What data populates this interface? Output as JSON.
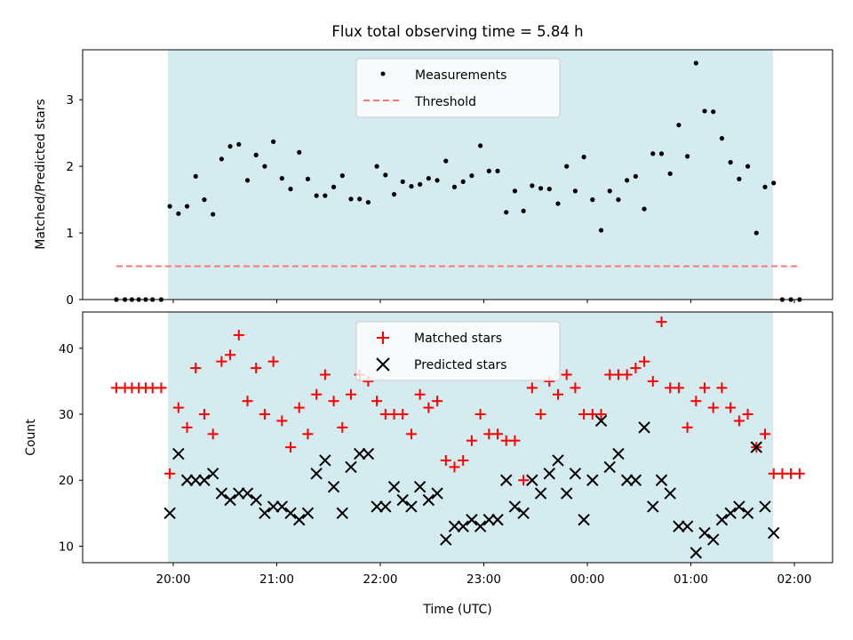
{
  "chart_data": [
    {
      "type": "scatter",
      "title": "Flux total observing time = 5.84 h",
      "ylabel": "Matched/Predicted stars",
      "xlabel": "",
      "x_unit": "hours (UTC, relative to 20:00)",
      "ylim": [
        0,
        3.75
      ],
      "yticks": [
        "0",
        "1",
        "2",
        "3"
      ],
      "ytick_values": [
        0,
        1,
        2,
        3
      ],
      "legend_position": "top-center",
      "shaded_span": {
        "start": "19:58",
        "end": "01:45",
        "color": "#d4ebf0"
      },
      "series": [
        {
          "name": "Measurements",
          "color": "#000000",
          "marker": "dot",
          "x": [
            "19:27",
            "19:32",
            "19:36",
            "19:40",
            "19:44",
            "19:48",
            "19:53",
            "19:58",
            "20:03",
            "20:08",
            "20:13",
            "20:18",
            "20:23",
            "20:28",
            "20:33",
            "20:38",
            "20:43",
            "20:48",
            "20:53",
            "20:58",
            "21:03",
            "21:08",
            "21:13",
            "21:18",
            "21:23",
            "21:28",
            "21:33",
            "21:38",
            "21:43",
            "21:48",
            "21:53",
            "21:58",
            "22:03",
            "22:08",
            "22:13",
            "22:18",
            "22:23",
            "22:28",
            "22:33",
            "22:38",
            "22:43",
            "22:48",
            "22:53",
            "22:58",
            "23:03",
            "23:08",
            "23:13",
            "23:18",
            "23:23",
            "23:28",
            "23:33",
            "23:38",
            "23:43",
            "23:48",
            "23:53",
            "23:58",
            "00:03",
            "00:08",
            "00:13",
            "00:18",
            "00:23",
            "00:28",
            "00:33",
            "00:38",
            "00:43",
            "00:48",
            "00:53",
            "00:58",
            "01:03",
            "01:08",
            "01:13",
            "01:18",
            "01:23",
            "01:28",
            "01:33",
            "01:38",
            "01:43",
            "01:48",
            "01:53",
            "01:58",
            "02:03"
          ],
          "values": [
            0,
            0,
            0,
            0,
            0,
            0,
            0,
            1.4,
            1.29,
            1.4,
            1.85,
            1.5,
            1.28,
            2.11,
            2.3,
            2.33,
            1.79,
            2.17,
            2.0,
            2.37,
            1.82,
            1.66,
            2.21,
            1.81,
            1.56,
            1.56,
            1.69,
            1.86,
            1.51,
            1.51,
            1.46,
            2.0,
            1.87,
            1.58,
            1.77,
            1.7,
            1.73,
            1.82,
            1.79,
            2.08,
            1.69,
            1.77,
            1.86,
            2.31,
            1.93,
            1.93,
            1.31,
            1.63,
            1.33,
            1.71,
            1.67,
            1.66,
            1.44,
            2.0,
            1.63,
            2.14,
            1.5,
            1.04,
            1.63,
            1.5,
            1.79,
            1.85,
            1.36,
            2.19,
            2.19,
            1.89,
            2.62,
            2.15,
            3.55,
            2.83,
            2.82,
            2.42,
            2.06,
            1.81,
            2.0,
            1.0,
            1.69,
            1.75,
            0,
            0,
            0
          ]
        },
        {
          "name": "Threshold",
          "color": "#ff7575",
          "style": "dashed",
          "x": [
            "19:27",
            "02:03"
          ],
          "values": [
            0.5,
            0.5
          ]
        }
      ]
    },
    {
      "type": "scatter",
      "title": "",
      "ylabel": "Count",
      "xlabel": "Time (UTC)",
      "ylim": [
        7.5,
        45.5
      ],
      "yticks": [
        "10",
        "20",
        "30",
        "40"
      ],
      "ytick_values": [
        10,
        20,
        30,
        40
      ],
      "xticks": [
        "20:00",
        "21:00",
        "22:00",
        "23:00",
        "00:00",
        "01:00",
        "02:00"
      ],
      "legend_position": "top-center",
      "shaded_span": {
        "start": "19:58",
        "end": "01:45",
        "color": "#d4ebf0"
      },
      "series": [
        {
          "name": "Matched stars",
          "color": "#ff0000",
          "marker": "plus",
          "x": [
            "19:27",
            "19:32",
            "19:36",
            "19:40",
            "19:44",
            "19:48",
            "19:53",
            "19:58",
            "20:03",
            "20:08",
            "20:13",
            "20:18",
            "20:23",
            "20:28",
            "20:33",
            "20:38",
            "20:43",
            "20:48",
            "20:53",
            "20:58",
            "21:03",
            "21:08",
            "21:13",
            "21:18",
            "21:23",
            "21:28",
            "21:33",
            "21:38",
            "21:43",
            "21:48",
            "21:53",
            "21:58",
            "22:03",
            "22:08",
            "22:13",
            "22:18",
            "22:23",
            "22:28",
            "22:33",
            "22:38",
            "22:43",
            "22:48",
            "22:53",
            "22:58",
            "23:03",
            "23:08",
            "23:13",
            "23:18",
            "23:23",
            "23:28",
            "23:33",
            "23:38",
            "23:43",
            "23:48",
            "23:53",
            "23:58",
            "00:03",
            "00:08",
            "00:13",
            "00:18",
            "00:23",
            "00:28",
            "00:33",
            "00:38",
            "00:43",
            "00:48",
            "00:53",
            "00:58",
            "01:03",
            "01:08",
            "01:13",
            "01:18",
            "01:23",
            "01:28",
            "01:33",
            "01:38",
            "01:43",
            "01:48",
            "01:53",
            "01:58",
            "02:03"
          ],
          "values": [
            34,
            34,
            34,
            34,
            34,
            34,
            34,
            21,
            31,
            28,
            37,
            30,
            27,
            38,
            39,
            42,
            32,
            37,
            30,
            38,
            29,
            25,
            31,
            27,
            33,
            36,
            32,
            28,
            33,
            36,
            35,
            32,
            30,
            30,
            30,
            27,
            33,
            31,
            32,
            23,
            22,
            23,
            26,
            30,
            27,
            27,
            26,
            26,
            20,
            34,
            30,
            35,
            33,
            36,
            34,
            30,
            30,
            30,
            36,
            36,
            36,
            37,
            38,
            35,
            44,
            34,
            34,
            28,
            32,
            34,
            31,
            34,
            31,
            29,
            30,
            25,
            27,
            21,
            21,
            21,
            21
          ]
        },
        {
          "name": "Predicted stars",
          "color": "#000000",
          "marker": "x",
          "x": [
            "19:58",
            "20:03",
            "20:08",
            "20:13",
            "20:18",
            "20:23",
            "20:28",
            "20:33",
            "20:38",
            "20:43",
            "20:48",
            "20:53",
            "20:58",
            "21:03",
            "21:08",
            "21:13",
            "21:18",
            "21:23",
            "21:28",
            "21:33",
            "21:38",
            "21:43",
            "21:48",
            "21:53",
            "21:58",
            "22:03",
            "22:08",
            "22:13",
            "22:18",
            "22:23",
            "22:28",
            "22:33",
            "22:38",
            "22:43",
            "22:48",
            "22:53",
            "22:58",
            "23:03",
            "23:08",
            "23:13",
            "23:18",
            "23:23",
            "23:28",
            "23:33",
            "23:38",
            "23:43",
            "23:48",
            "23:53",
            "23:58",
            "00:03",
            "00:08",
            "00:13",
            "00:18",
            "00:23",
            "00:28",
            "00:33",
            "00:38",
            "00:43",
            "00:48",
            "00:53",
            "00:58",
            "01:03",
            "01:08",
            "01:13",
            "01:18",
            "01:23",
            "01:28",
            "01:33",
            "01:38",
            "01:43",
            "01:48"
          ],
          "values": [
            15,
            24,
            20,
            20,
            20,
            21,
            18,
            17,
            18,
            18,
            17,
            15,
            16,
            16,
            15,
            14,
            15,
            21,
            23,
            19,
            15,
            22,
            24,
            24,
            16,
            16,
            19,
            17,
            16,
            19,
            17,
            18,
            11,
            13,
            13,
            14,
            13,
            14,
            14,
            20,
            16,
            15,
            20,
            18,
            21,
            23,
            18,
            21,
            14,
            20,
            29,
            22,
            24,
            20,
            20,
            28,
            16,
            20,
            18,
            13,
            13,
            9,
            12,
            11,
            14,
            15,
            16,
            15,
            25,
            16,
            12
          ]
        }
      ]
    }
  ]
}
